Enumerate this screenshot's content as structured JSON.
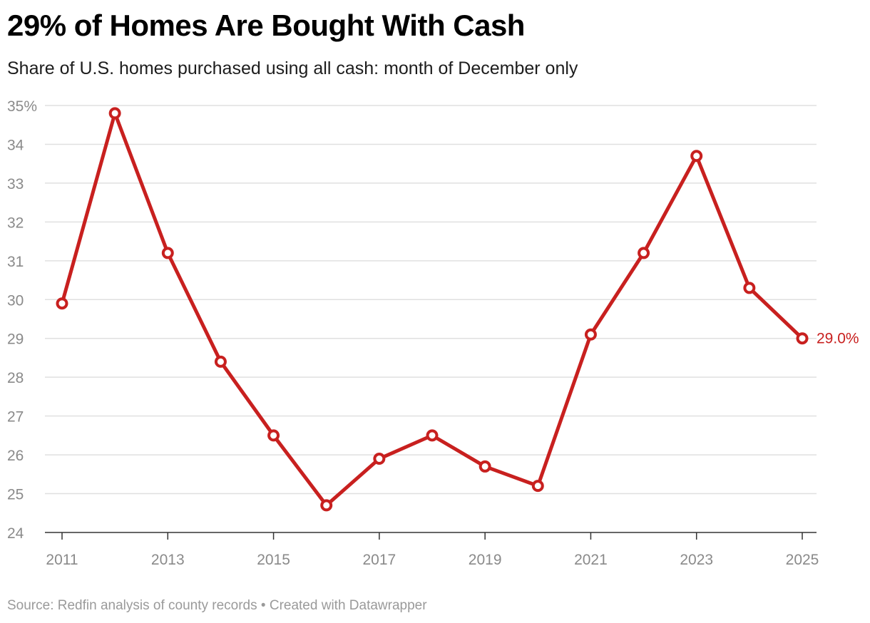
{
  "header": {
    "title": "29% of Homes Are Bought With Cash",
    "subtitle": "Share of U.S. homes purchased using all cash: month of December only"
  },
  "footer": {
    "source": "Source: Redfin analysis of county records",
    "separator": "•",
    "credit": "Created with Datawrapper"
  },
  "colors": {
    "line": "#c8201f",
    "grid": "#e0e0e0",
    "axis": "#333333",
    "tick_text": "#8a8a8a"
  },
  "chart_data": {
    "type": "line",
    "title": "29% of Homes Are Bought With Cash",
    "subtitle": "Share of U.S. homes purchased using all cash: month of December only",
    "xlabel": "",
    "ylabel": "",
    "x": [
      2011,
      2012,
      2013,
      2014,
      2015,
      2016,
      2017,
      2018,
      2019,
      2020,
      2021,
      2022,
      2023,
      2024,
      2025
    ],
    "series": [
      {
        "values": [
          29.9,
          34.8,
          31.2,
          28.4,
          26.5,
          24.7,
          25.9,
          26.5,
          25.7,
          25.2,
          29.1,
          31.2,
          33.7,
          30.3,
          29.0
        ]
      }
    ],
    "ylim": [
      24,
      35
    ],
    "xlim": [
      2011,
      2025
    ],
    "y_ticks": [
      "24",
      "25",
      "26",
      "27",
      "28",
      "29",
      "30",
      "31",
      "32",
      "33",
      "34",
      "35%"
    ],
    "y_tick_values": [
      24,
      25,
      26,
      27,
      28,
      29,
      30,
      31,
      32,
      33,
      34,
      35
    ],
    "x_ticks": [
      "2011",
      "2013",
      "2015",
      "2017",
      "2019",
      "2021",
      "2023",
      "2025"
    ],
    "x_tick_values": [
      2011,
      2013,
      2015,
      2017,
      2019,
      2021,
      2023,
      2025
    ],
    "end_label": "29.0%",
    "grid": true,
    "legend": "none"
  }
}
